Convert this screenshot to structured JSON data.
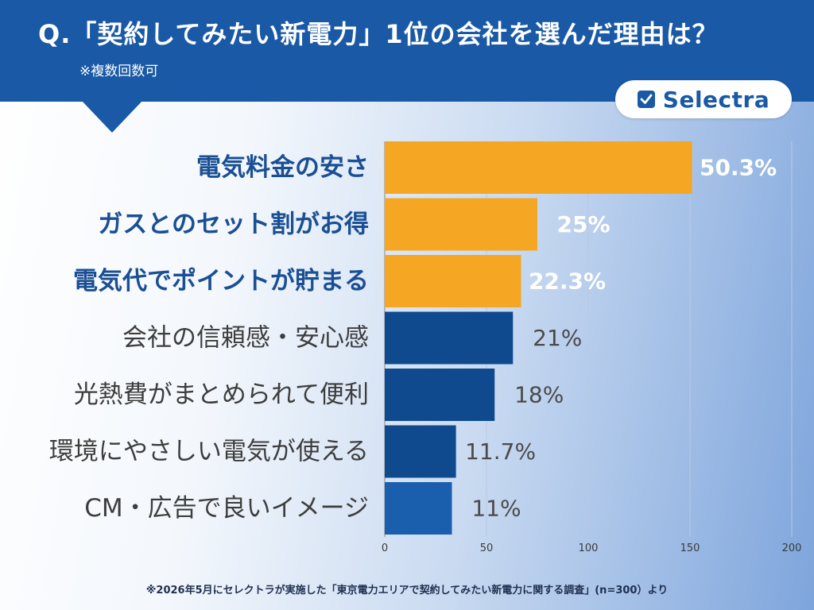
{
  "header": {
    "title": "Q.「契約してみたい新電力」1位の会社を選んだ理由は？",
    "subtitle": "※複数回数可"
  },
  "logo": {
    "text": "Selectra",
    "icon": "checkbox-check-icon"
  },
  "footnote": "※2026年5月にセレクトラが実施した「東京電力エリアで契約してみたい新電力に関する調査」(n=300）より",
  "colors": {
    "header_bg": "#1a59a5",
    "highlight_bar": "#f5a623",
    "bar_dark": "#104a8e",
    "bar_light": "#1a5fae",
    "highlight_label": "#1a4f94",
    "normal_label": "#3d3d3d",
    "value_highlight": "#ffffff",
    "value_normal": "#4a4a4a"
  },
  "chart_data": {
    "type": "bar",
    "orientation": "horizontal",
    "categories": [
      "電気料金の安さ",
      "ガスとのセット割がお得",
      "電気代でポイントが貯まる",
      "会社の信頼感・安心感",
      "光熱費がまとめられて便利",
      "環境にやさしい電気が使える",
      "CM・広告で良いイメージ"
    ],
    "values": [
      151,
      75,
      67,
      63,
      54,
      35,
      33
    ],
    "value_labels": [
      "50.3%",
      "25%",
      "22.3%",
      "21%",
      "18%",
      "11.7%",
      "11%"
    ],
    "highlighted": [
      true,
      true,
      true,
      false,
      false,
      false,
      false
    ],
    "xlim": [
      0,
      200
    ],
    "xticks": [
      "0",
      "50",
      "100",
      "150",
      "200"
    ],
    "grid": true,
    "title": "",
    "xlabel": "",
    "ylabel": ""
  }
}
